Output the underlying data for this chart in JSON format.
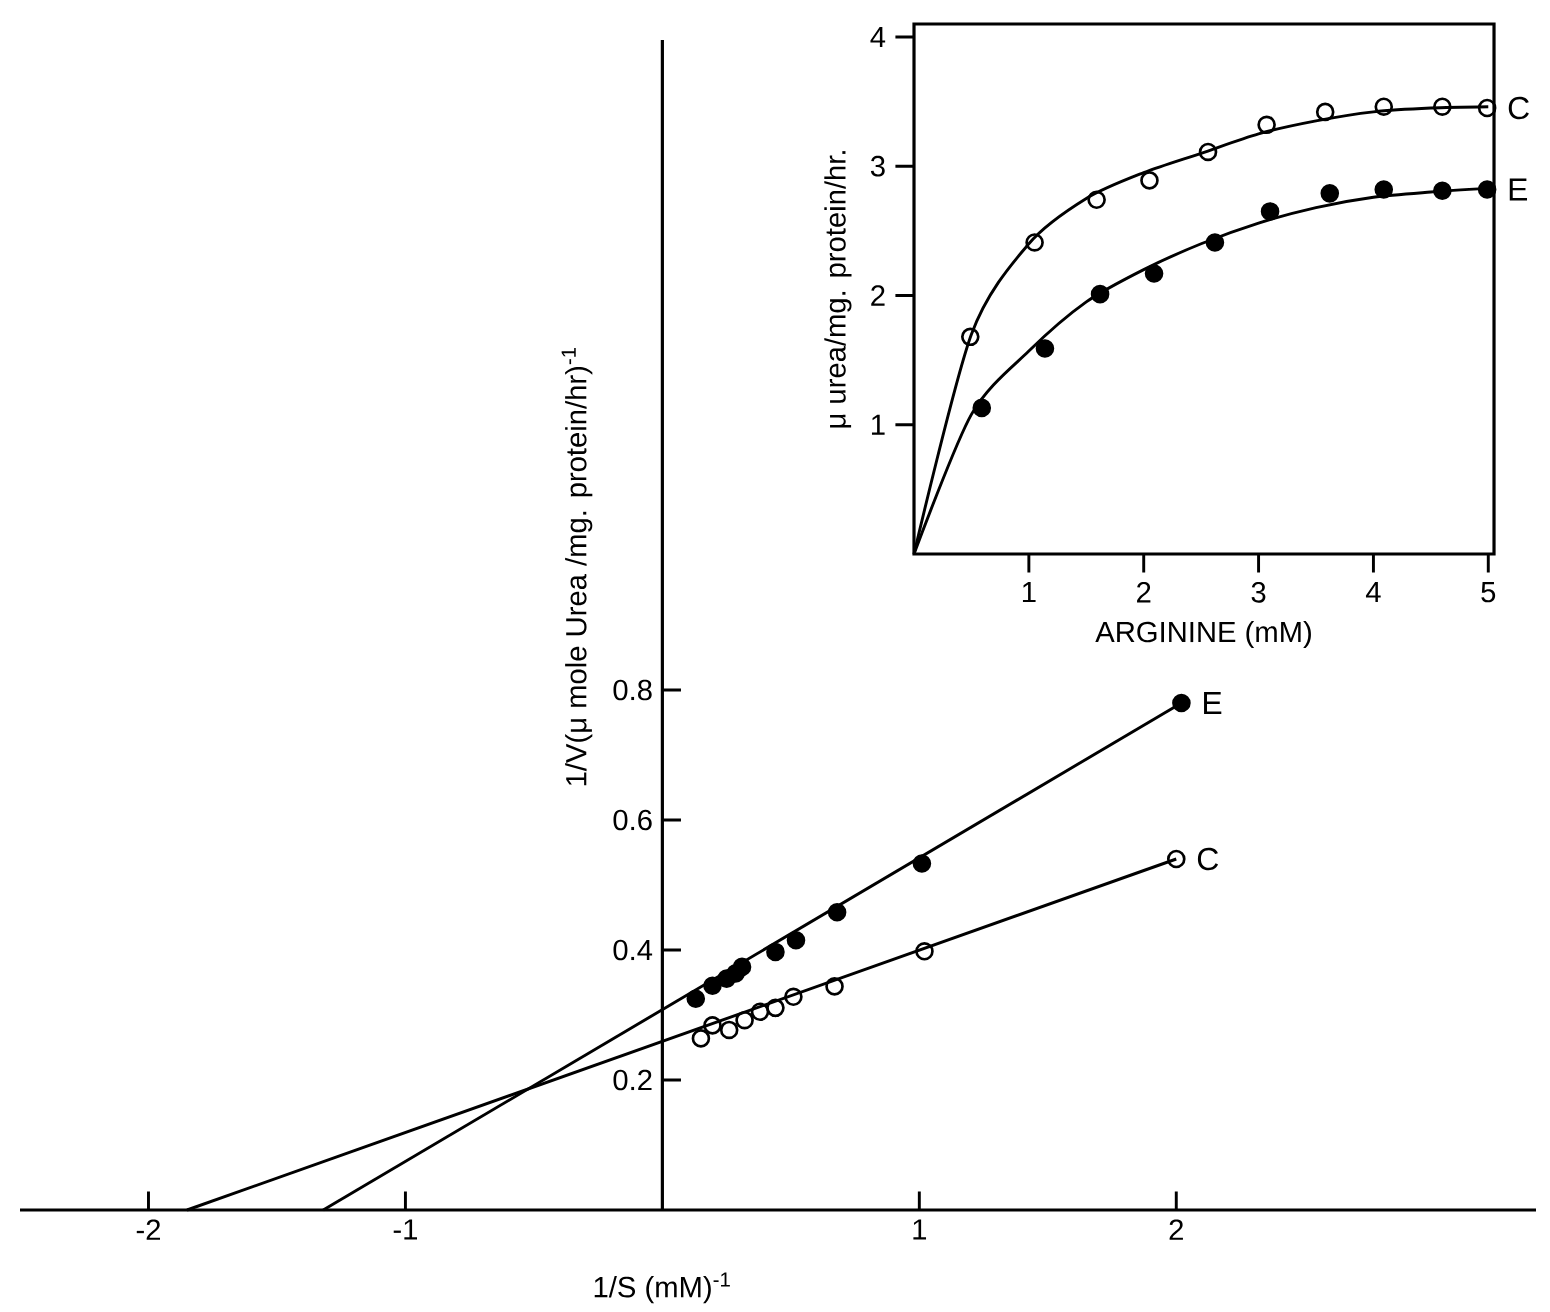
{
  "chart_data": [
    {
      "type": "scatter",
      "xlabel": "1/S (mM)$^{-1}$",
      "ylabel": "1/V(μ mole  Urea /mg. protein/hr)$^{-1}$",
      "xlim": [
        -2.5,
        3.4
      ],
      "ylim": [
        0,
        1.8
      ],
      "xticks": [
        -2,
        -1,
        1,
        2
      ],
      "yticks": [
        0.2,
        0.4,
        0.6,
        0.8
      ],
      "marker": "circle",
      "legend": false,
      "series": [
        {
          "name": "E",
          "color": "#000000",
          "x": [
            0.13,
            0.195,
            0.25,
            0.285,
            0.31,
            0.44,
            0.52,
            0.68,
            1.01,
            2.02
          ],
          "values": [
            0.325,
            0.345,
            0.356,
            0.364,
            0.374,
            0.397,
            0.415,
            0.458,
            0.533,
            0.78
          ]
        },
        {
          "name": "C",
          "color": "#000000",
          "x": [
            0.15,
            0.195,
            0.26,
            0.32,
            0.38,
            0.44,
            0.51,
            0.67,
            1.02,
            2.0
          ],
          "values": [
            0.264,
            0.284,
            0.277,
            0.292,
            0.305,
            0.311,
            0.328,
            0.344,
            0.398,
            0.54
          ]
        },
        {
          "type": "line",
          "marker": "none",
          "color": "#000000",
          "x": [
            -1.32,
            2.02
          ],
          "values": [
            0,
            0.78
          ]
        },
        {
          "type": "line",
          "marker": "none",
          "color": "#000000",
          "x": [
            -1.85,
            2.0
          ],
          "values": [
            0,
            0.54
          ]
        }
      ]
    },
    {
      "type": "scatter",
      "xlabel": "ARGININE (mM)",
      "ylabel": "μ urea/mg. protein/hr.",
      "xlim": [
        0,
        5.05
      ],
      "ylim": [
        0,
        4.1
      ],
      "xticks": [
        1,
        2,
        3,
        4,
        5
      ],
      "yticks": [
        1,
        2,
        3,
        4
      ],
      "marker": "circle",
      "legend": false,
      "series": [
        {
          "name": "E",
          "color": "#000000",
          "x": [
            0.59,
            1.14,
            1.62,
            2.09,
            2.62,
            3.1,
            3.62,
            4.09,
            4.6,
            4.99
          ],
          "values": [
            1.13,
            1.59,
            2.01,
            2.17,
            2.41,
            2.65,
            2.79,
            2.82,
            2.81,
            2.82
          ]
        },
        {
          "name": "C",
          "color": "#000000",
          "x": [
            0.49,
            1.05,
            1.59,
            2.05,
            2.56,
            3.07,
            3.58,
            4.09,
            4.6,
            4.99
          ],
          "values": [
            1.68,
            2.41,
            2.74,
            2.89,
            3.11,
            3.32,
            3.42,
            3.46,
            3.46,
            3.45
          ]
        },
        {
          "type": "line",
          "marker": "none",
          "color": "#000000",
          "x": [
            0,
            0.5,
            1,
            1.5,
            2,
            2.5,
            3,
            3.5,
            4,
            4.5,
            5
          ],
          "values": [
            0,
            1.08,
            1.57,
            1.95,
            2.2,
            2.4,
            2.56,
            2.68,
            2.76,
            2.8,
            2.83
          ]
        },
        {
          "type": "line",
          "marker": "none",
          "color": "#000000",
          "x": [
            0,
            0.5,
            1,
            1.5,
            2,
            2.5,
            3,
            3.5,
            4,
            4.5,
            5
          ],
          "values": [
            0,
            1.7,
            2.4,
            2.75,
            2.95,
            3.1,
            3.25,
            3.35,
            3.42,
            3.45,
            3.46
          ]
        }
      ]
    }
  ]
}
